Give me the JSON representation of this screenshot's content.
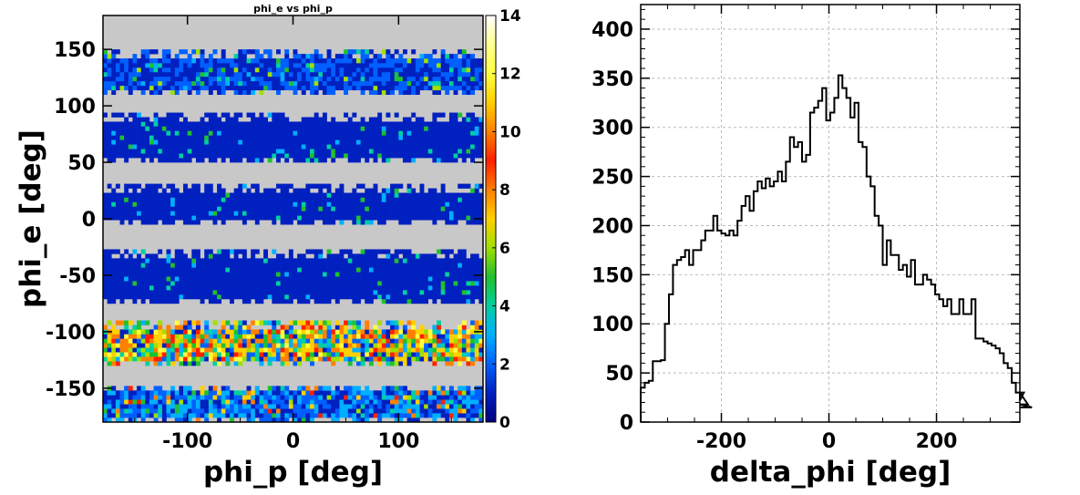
{
  "chart_data": [
    {
      "type": "heatmap",
      "title": "phi_e vs phi_p",
      "xlabel": "phi_p  [deg]",
      "ylabel": "phi_e [deg]",
      "xlim": [
        -180,
        180
      ],
      "ylim": [
        -180,
        180
      ],
      "x_ticks": [
        -100,
        0,
        100
      ],
      "y_ticks": [
        -150,
        -100,
        -50,
        0,
        50,
        100,
        150
      ],
      "z_range": [
        0,
        14
      ],
      "colorbar_ticks": [
        0,
        2,
        4,
        6,
        8,
        10,
        12,
        14
      ],
      "background_color": "#c8c8c8",
      "bin_width_deg": 4,
      "bands": [
        {
          "y_min": -180,
          "y_max": -148,
          "typical_count": 3
        },
        {
          "y_min": -130,
          "y_max": -92,
          "typical_count": 5
        },
        {
          "y_min": -75,
          "y_max": -30,
          "typical_count": 1
        },
        {
          "y_min": -5,
          "y_max": 30,
          "typical_count": 1
        },
        {
          "y_min": 50,
          "y_max": 92,
          "typical_count": 1
        },
        {
          "y_min": 110,
          "y_max": 148,
          "typical_count": 2
        }
      ],
      "colormap": [
        "#000080",
        "#0020c0",
        "#0060ff",
        "#00b0ff",
        "#00d0a0",
        "#20c030",
        "#a0e000",
        "#ffd000",
        "#ff8000",
        "#ff2000",
        "#ff8000",
        "#ffd000",
        "#ffff40",
        "#ffff90",
        "#ffffff"
      ]
    },
    {
      "type": "histogram",
      "xlabel": "delta_phi [deg]",
      "ylabel": "",
      "xlim": [
        -350,
        355
      ],
      "ylim": [
        0,
        425
      ],
      "x_ticks": [
        -200,
        0,
        200
      ],
      "y_ticks": [
        0,
        50,
        100,
        150,
        200,
        250,
        300,
        350,
        400
      ],
      "grid": true,
      "bin_width": 7.5,
      "bin_start": -350,
      "values": [
        35,
        40,
        42,
        62,
        62,
        63,
        100,
        130,
        160,
        165,
        168,
        175,
        160,
        175,
        175,
        185,
        195,
        195,
        210,
        195,
        192,
        190,
        195,
        190,
        205,
        220,
        230,
        215,
        235,
        245,
        238,
        248,
        240,
        245,
        255,
        245,
        265,
        290,
        280,
        285,
        265,
        272,
        315,
        320,
        327,
        340,
        307,
        315,
        330,
        353,
        340,
        330,
        310,
        325,
        285,
        280,
        250,
        240,
        210,
        200,
        160,
        185,
        170,
        170,
        155,
        160,
        148,
        165,
        140,
        140,
        150,
        145,
        140,
        130,
        125,
        118,
        125,
        110,
        110,
        125,
        110,
        110,
        125,
        85,
        85,
        82,
        80,
        78,
        75,
        70,
        60,
        55,
        40,
        30,
        22,
        30,
        18,
        15
      ]
    }
  ]
}
